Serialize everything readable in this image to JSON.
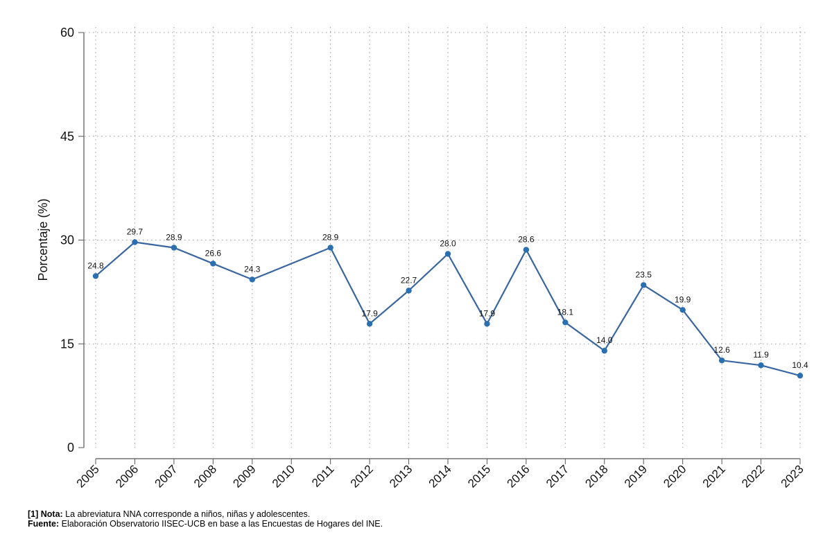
{
  "chart_data": {
    "type": "line",
    "x": [
      "2005",
      "2006",
      "2007",
      "2008",
      "2009",
      "2011",
      "2012",
      "2013",
      "2014",
      "2015",
      "2016",
      "2017",
      "2018",
      "2019",
      "2020",
      "2021",
      "2022",
      "2023"
    ],
    "categories": [
      "2005",
      "2006",
      "2007",
      "2008",
      "2009",
      "2010",
      "2011",
      "2012",
      "2013",
      "2014",
      "2015",
      "2016",
      "2017",
      "2018",
      "2019",
      "2020",
      "2021",
      "2022",
      "2023"
    ],
    "values": [
      24.8,
      29.7,
      28.9,
      26.6,
      24.3,
      28.9,
      17.9,
      22.7,
      28.0,
      17.9,
      28.6,
      18.1,
      14.0,
      23.5,
      19.9,
      12.6,
      11.9,
      10.4
    ],
    "data_labels": [
      "24.8",
      "29.7",
      "28.9",
      "26.6",
      "24.3",
      "28.9",
      "17.9",
      "22.7",
      "28.0",
      "17.9",
      "28.6",
      "18.1",
      "14.0",
      "23.5",
      "19.9",
      "12.6",
      "11.9",
      "10.4"
    ],
    "ylabel": "Porcentaje (%)",
    "xlabel": "",
    "ylim": [
      0,
      60
    ],
    "yticks": [
      "0",
      "15",
      "30",
      "45",
      "60"
    ],
    "grid": true,
    "line_color": "#3a66a0",
    "marker_color": "#2a6fb0"
  },
  "notes": {
    "note_label": "[1] Nota:",
    "note_text": " La abreviatura NNA corresponde a niños, niñas y adolescentes.",
    "source_label": "Fuente:",
    "source_text": " Elaboración Observatorio IISEC-UCB en base a las Encuestas de Hogares del INE."
  }
}
